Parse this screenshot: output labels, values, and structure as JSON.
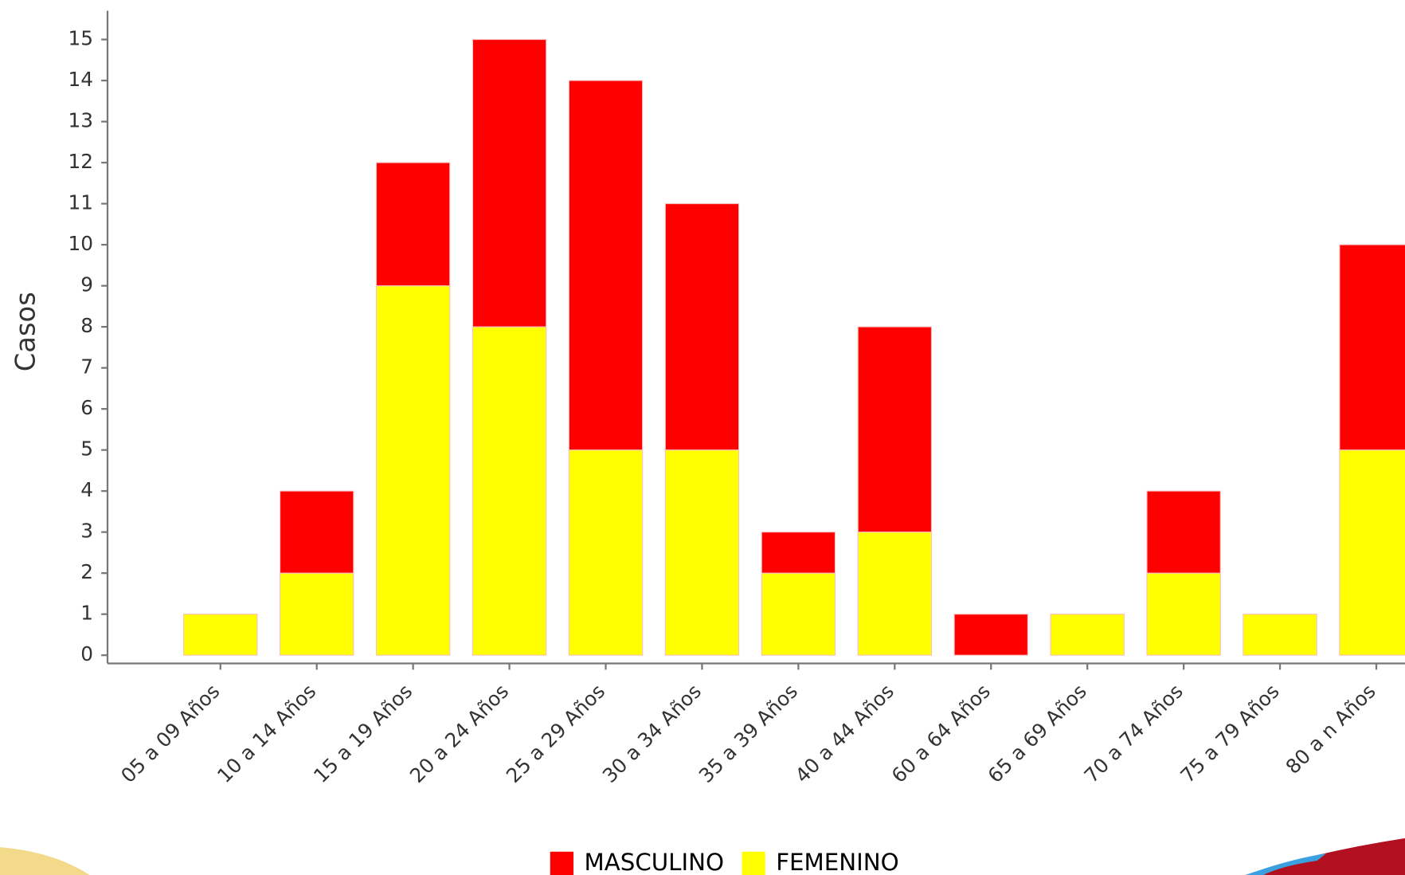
{
  "chart_data": {
    "type": "stacked_bar",
    "y_label": "Casos",
    "categories": [
      "05 a 09 Años",
      "10 a 14 Años",
      "15 a 19 Años",
      "20 a 24 Años",
      "25 a 29 Años",
      "30 a 34 Años",
      "35 a 39 Años",
      "40 a 44 Años",
      "60 a 64 Años",
      "65 a 69 Años",
      "70 a 74 Años",
      "75 a 79 Años",
      "80 a n Años"
    ],
    "series": [
      {
        "name": "MASCULINO",
        "color": "#ff0000",
        "values": [
          0,
          2,
          3,
          7,
          9,
          6,
          1,
          5,
          1,
          0,
          2,
          0,
          5
        ]
      },
      {
        "name": "FEMENINO",
        "color": "#ffff00",
        "values": [
          1,
          2,
          9,
          8,
          5,
          5,
          2,
          3,
          0,
          1,
          2,
          1,
          5
        ]
      }
    ],
    "ylim": [
      -0.2,
      15.7
    ],
    "yticks": [
      0,
      1,
      2,
      3,
      4,
      5,
      6,
      7,
      8,
      9,
      10,
      11,
      12,
      13,
      14,
      15
    ],
    "legend": "bottom"
  }
}
